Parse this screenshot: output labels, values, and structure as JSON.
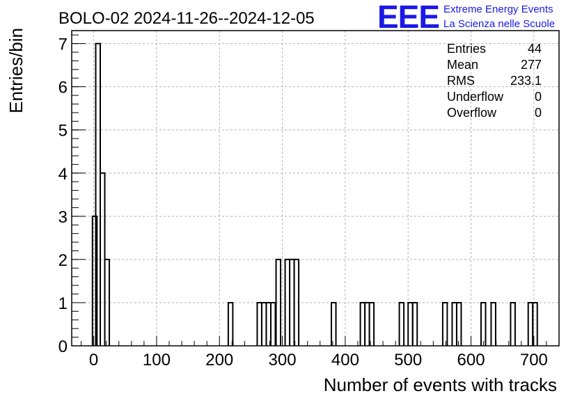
{
  "chart_data": {
    "type": "histogram",
    "title": "BOLO-02 2024-11-26--2024-12-05",
    "xlabel": "Number of events with tracks",
    "ylabel": "Entries/bin",
    "xlim": [
      -35,
      740
    ],
    "ylim": [
      0,
      7.3
    ],
    "xticks": [
      0,
      100,
      200,
      300,
      400,
      500,
      600,
      700
    ],
    "yticks": [
      0,
      1,
      2,
      3,
      4,
      5,
      6,
      7
    ],
    "grid": true,
    "bin_width": 7.2,
    "bins": [
      {
        "x0": -2.0,
        "count": 3
      },
      {
        "x0": 3.2,
        "count": 7
      },
      {
        "x0": 10.4,
        "count": 4
      },
      {
        "x0": 17.6,
        "count": 2
      },
      {
        "x0": 214.0,
        "count": 1
      },
      {
        "x0": 260.0,
        "count": 1
      },
      {
        "x0": 267.2,
        "count": 1
      },
      {
        "x0": 274.4,
        "count": 1
      },
      {
        "x0": 281.6,
        "count": 1
      },
      {
        "x0": 290.0,
        "count": 2
      },
      {
        "x0": 297.2,
        "count": 0
      },
      {
        "x0": 304.4,
        "count": 2
      },
      {
        "x0": 311.6,
        "count": 2
      },
      {
        "x0": 318.8,
        "count": 2
      },
      {
        "x0": 378.0,
        "count": 1
      },
      {
        "x0": 424.0,
        "count": 1
      },
      {
        "x0": 431.2,
        "count": 1
      },
      {
        "x0": 438.4,
        "count": 1
      },
      {
        "x0": 486.0,
        "count": 1
      },
      {
        "x0": 500.0,
        "count": 1
      },
      {
        "x0": 507.2,
        "count": 1
      },
      {
        "x0": 555.0,
        "count": 1
      },
      {
        "x0": 570.0,
        "count": 1
      },
      {
        "x0": 577.2,
        "count": 1
      },
      {
        "x0": 616.0,
        "count": 1
      },
      {
        "x0": 632.0,
        "count": 1
      },
      {
        "x0": 663.0,
        "count": 1
      },
      {
        "x0": 691.0,
        "count": 1
      },
      {
        "x0": 698.2,
        "count": 1
      }
    ],
    "stats": [
      {
        "label": "Entries",
        "value": "44"
      },
      {
        "label": "Mean",
        "value": "277"
      },
      {
        "label": "RMS",
        "value": "233.1"
      },
      {
        "label": "Underflow",
        "value": "0"
      },
      {
        "label": "Overflow",
        "value": "0"
      }
    ]
  },
  "logo": {
    "mark": "EEE",
    "line1": "Extreme Energy Events",
    "line2": "La Scienza nelle Scuole",
    "color": "#1a1ae6"
  },
  "colors": {
    "line": "#000000",
    "grid": "#b0b0b0"
  }
}
